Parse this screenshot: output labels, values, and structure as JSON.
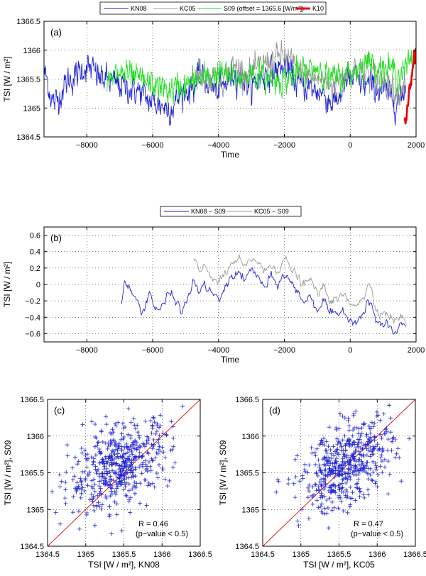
{
  "chart_data": [
    {
      "id": "a",
      "type": "line",
      "panel_label": "(a)",
      "xlabel": "Time",
      "ylabel": "TSI [W / m²]",
      "xlim": [
        -9300,
        2000
      ],
      "ylim": [
        1364.5,
        1366.5
      ],
      "xticks": [
        -8000,
        -6000,
        -4000,
        -2000,
        0,
        2000
      ],
      "yticks": [
        1364.5,
        1365,
        1365.5,
        1366,
        1366.5
      ],
      "xtick_labels": [
        "−8000",
        "−6000",
        "−4000",
        "−2000",
        "0",
        "2000"
      ],
      "ytick_labels": [
        "1364.5",
        "1365",
        "1365.5",
        "1366",
        "1366.5"
      ],
      "legend": [
        "KN08",
        "KC05",
        "S09 (offset = 1365.6 [W/m²])",
        "K10"
      ],
      "series": [
        {
          "name": "KN08",
          "color": "#1f23d6",
          "x_range": [
            -9300,
            1700
          ],
          "base": 1365.3,
          "amplitude": 0.34,
          "trend": "drift from 1365.5 to 1365.2",
          "anchors": [
            [
              -9300,
              1365.6
            ],
            [
              -9000,
              1365.1
            ],
            [
              -8500,
              1365.5
            ],
            [
              -8000,
              1365.7
            ],
            [
              -7500,
              1365.5
            ],
            [
              -7000,
              1365.4
            ],
            [
              -6500,
              1365.3
            ],
            [
              -6000,
              1365.1
            ],
            [
              -5500,
              1365.0
            ],
            [
              -5000,
              1365.3
            ],
            [
              -4500,
              1365.5
            ],
            [
              -4000,
              1365.3
            ],
            [
              -3500,
              1365.6
            ],
            [
              -3000,
              1365.4
            ],
            [
              -2500,
              1365.6
            ],
            [
              -2000,
              1365.7
            ],
            [
              -1500,
              1365.4
            ],
            [
              -1000,
              1365.3
            ],
            [
              -500,
              1365.1
            ],
            [
              0,
              1365.5
            ],
            [
              500,
              1365.4
            ],
            [
              1000,
              1365.3
            ],
            [
              1500,
              1365.1
            ],
            [
              1700,
              1365.4
            ]
          ]
        },
        {
          "name": "KC05",
          "color": "#9a9a9a",
          "x_range": [
            -4800,
            1700
          ],
          "anchors": [
            [
              -4800,
              1365.6
            ],
            [
              -4000,
              1365.5
            ],
            [
              -3500,
              1365.7
            ],
            [
              -3000,
              1365.6
            ],
            [
              -2500,
              1365.8
            ],
            [
              -2000,
              1365.9
            ],
            [
              -1500,
              1365.6
            ],
            [
              -1000,
              1365.5
            ],
            [
              -500,
              1365.4
            ],
            [
              0,
              1365.7
            ],
            [
              500,
              1365.6
            ],
            [
              1000,
              1365.5
            ],
            [
              1500,
              1365.3
            ],
            [
              1700,
              1365.5
            ]
          ]
        },
        {
          "name": "S09 (offset = 1365.6 [W/m²])",
          "color": "#22dd22",
          "x_range": [
            -7400,
            1900
          ],
          "anchors": [
            [
              -7400,
              1365.4
            ],
            [
              -7000,
              1365.6
            ],
            [
              -6500,
              1365.5
            ],
            [
              -6000,
              1365.4
            ],
            [
              -5500,
              1365.3
            ],
            [
              -5000,
              1365.4
            ],
            [
              -4500,
              1365.5
            ],
            [
              -4000,
              1365.6
            ],
            [
              -3500,
              1365.5
            ],
            [
              -3000,
              1365.6
            ],
            [
              -2500,
              1365.5
            ],
            [
              -2000,
              1365.5
            ],
            [
              -1500,
              1365.6
            ],
            [
              -1000,
              1365.7
            ],
            [
              -500,
              1365.5
            ],
            [
              0,
              1365.6
            ],
            [
              500,
              1365.8
            ],
            [
              1000,
              1365.7
            ],
            [
              1500,
              1365.6
            ],
            [
              1900,
              1365.8
            ]
          ]
        },
        {
          "name": "K10",
          "color": "#ee0000",
          "x_range": [
            1650,
            2000
          ],
          "anchors": [
            [
              1650,
              1364.8
            ],
            [
              1700,
              1364.75
            ],
            [
              1750,
              1365.1
            ],
            [
              1800,
              1365.35
            ],
            [
              1850,
              1365.5
            ],
            [
              1900,
              1365.7
            ],
            [
              1950,
              1365.9
            ],
            [
              2000,
              1366.05
            ]
          ]
        }
      ]
    },
    {
      "id": "b",
      "type": "line",
      "panel_label": "(b)",
      "xlabel": "Time",
      "ylabel": "TSI [W / m²]",
      "xlim": [
        -9300,
        2000
      ],
      "ylim": [
        -0.7,
        0.7
      ],
      "xticks": [
        -8000,
        -6000,
        -4000,
        -2000,
        0,
        2000
      ],
      "yticks": [
        -0.6,
        -0.4,
        -0.2,
        0,
        0.2,
        0.4,
        0.6
      ],
      "xtick_labels": [
        "−8000",
        "−6000",
        "−4000",
        "−2000",
        "0",
        "2000"
      ],
      "ytick_labels": [
        "−0.6",
        "−0.4",
        "−0.2",
        "0",
        "0.2",
        "0.4",
        "0.6"
      ],
      "legend": [
        "KN08 − S09",
        "KC05 − S09"
      ],
      "series": [
        {
          "name": "KN08 − S09",
          "color": "#1f23d6",
          "anchors": [
            [
              -6950,
              -0.25
            ],
            [
              -6850,
              0.03
            ],
            [
              -6700,
              -0.05
            ],
            [
              -6500,
              -0.2
            ],
            [
              -6300,
              -0.33
            ],
            [
              -6100,
              -0.1
            ],
            [
              -5900,
              -0.3
            ],
            [
              -5700,
              -0.28
            ],
            [
              -5500,
              -0.1
            ],
            [
              -5300,
              -0.2
            ],
            [
              -5100,
              -0.32
            ],
            [
              -4900,
              -0.15
            ],
            [
              -4750,
              0.05
            ],
            [
              -4600,
              -0.08
            ],
            [
              -4400,
              -0.02
            ],
            [
              -4200,
              -0.1
            ],
            [
              -4000,
              -0.2
            ],
            [
              -3800,
              -0.05
            ],
            [
              -3600,
              0.1
            ],
            [
              -3400,
              0.15
            ],
            [
              -3200,
              0.05
            ],
            [
              -3000,
              0.18
            ],
            [
              -2800,
              0.1
            ],
            [
              -2600,
              -0.05
            ],
            [
              -2400,
              0.08
            ],
            [
              -2200,
              0.0
            ],
            [
              -2000,
              0.12
            ],
            [
              -1800,
              0.03
            ],
            [
              -1600,
              -0.1
            ],
            [
              -1400,
              -0.2
            ],
            [
              -1200,
              -0.15
            ],
            [
              -1000,
              -0.3
            ],
            [
              -800,
              -0.2
            ],
            [
              -600,
              -0.35
            ],
            [
              -400,
              -0.4
            ],
            [
              -200,
              -0.3
            ],
            [
              0,
              -0.45
            ],
            [
              200,
              -0.42
            ],
            [
              400,
              -0.35
            ],
            [
              600,
              -0.2
            ],
            [
              800,
              -0.45
            ],
            [
              1000,
              -0.5
            ],
            [
              1200,
              -0.52
            ],
            [
              1400,
              -0.6
            ],
            [
              1550,
              -0.48
            ],
            [
              1700,
              -0.52
            ]
          ]
        },
        {
          "name": "KC05 − S09",
          "color": "#9a9a9a",
          "anchors": [
            [
              -4750,
              0.3
            ],
            [
              -4600,
              0.15
            ],
            [
              -4400,
              0.22
            ],
            [
              -4200,
              0.1
            ],
            [
              -4000,
              0.02
            ],
            [
              -3800,
              0.12
            ],
            [
              -3600,
              0.25
            ],
            [
              -3400,
              0.3
            ],
            [
              -3200,
              0.2
            ],
            [
              -3000,
              0.32
            ],
            [
              -2800,
              0.28
            ],
            [
              -2600,
              0.15
            ],
            [
              -2400,
              0.25
            ],
            [
              -2200,
              0.18
            ],
            [
              -2000,
              0.3
            ],
            [
              -1800,
              0.2
            ],
            [
              -1600,
              0.08
            ],
            [
              -1400,
              0.0
            ],
            [
              -1200,
              0.05
            ],
            [
              -1000,
              -0.1
            ],
            [
              -800,
              -0.05
            ],
            [
              -600,
              -0.18
            ],
            [
              -400,
              -0.2
            ],
            [
              -200,
              -0.12
            ],
            [
              0,
              -0.25
            ],
            [
              200,
              -0.22
            ],
            [
              400,
              -0.15
            ],
            [
              600,
              0.0
            ],
            [
              800,
              -0.3
            ],
            [
              1000,
              -0.35
            ],
            [
              1200,
              -0.38
            ],
            [
              1400,
              -0.45
            ],
            [
              1550,
              -0.38
            ],
            [
              1700,
              -0.48
            ]
          ]
        }
      ]
    },
    {
      "id": "c",
      "type": "scatter",
      "panel_label": "(c)",
      "xlabel": "TSI [W / m²], KN08",
      "ylabel": "TSI [W / m²], S09",
      "xlim": [
        1364.5,
        1366.5
      ],
      "ylim": [
        1364.5,
        1366.5
      ],
      "xticks": [
        1364.5,
        1365,
        1365.5,
        1366,
        1366.5
      ],
      "yticks": [
        1364.5,
        1365,
        1365.5,
        1366,
        1366.5
      ],
      "xtick_labels": [
        "1364.5",
        "1365",
        "1365.5",
        "1366",
        "1366.5"
      ],
      "ytick_labels": [
        "1364.5",
        "1365",
        "1365.5",
        "1366",
        "1366.5"
      ],
      "marker": "+",
      "marker_color": "#1f23d6",
      "reference_line": {
        "from": [
          1364.5,
          1364.5
        ],
        "to": [
          1366.5,
          1366.5
        ],
        "color": "#dd0000"
      },
      "point_cloud": {
        "count": 520,
        "x_mean": 1365.45,
        "x_sd": 0.33,
        "y_mean": 1365.6,
        "y_sd": 0.3,
        "correlation": 0.46
      },
      "stat_r": "R =   0.46",
      "stat_p": "(p−value < 0.5)"
    },
    {
      "id": "d",
      "type": "scatter",
      "panel_label": "(d)",
      "xlabel": "TSI [W / m²], KC05",
      "ylabel": "TSI [W / m²], S09",
      "xlim": [
        1364.5,
        1366.5
      ],
      "ylim": [
        1364.5,
        1366.5
      ],
      "xticks": [
        1364.5,
        1365,
        1365.5,
        1366,
        1366.5
      ],
      "yticks": [
        1364.5,
        1365,
        1365.5,
        1366,
        1366.5
      ],
      "xtick_labels": [
        "1364.5",
        "1365",
        "1365.5",
        "1366",
        "1366.5"
      ],
      "ytick_labels": [
        "1364.5",
        "1365",
        "1365.5",
        "1366",
        "1366.5"
      ],
      "marker": "+",
      "marker_color": "#1f23d6",
      "reference_line": {
        "from": [
          1364.5,
          1364.5
        ],
        "to": [
          1366.5,
          1366.5
        ],
        "color": "#dd0000"
      },
      "point_cloud": {
        "count": 520,
        "x_mean": 1365.6,
        "x_sd": 0.3,
        "y_mean": 1365.6,
        "y_sd": 0.3,
        "correlation": 0.47
      },
      "stat_r": "R =   0.47",
      "stat_p": "(p−value < 0.5)"
    }
  ]
}
